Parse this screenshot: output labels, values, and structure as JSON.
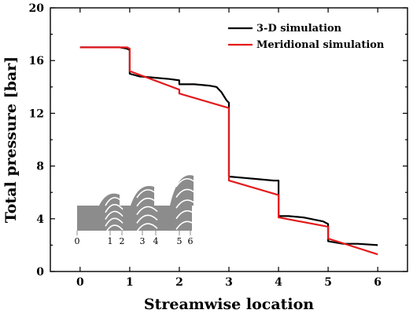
{
  "chart_data": {
    "type": "line",
    "xlabel": "Streamwise location",
    "ylabel": "Total pressure [bar]",
    "xlim": [
      -0.6,
      6.6
    ],
    "ylim": [
      0,
      20
    ],
    "xticks": [
      0,
      1,
      2,
      3,
      4,
      5,
      6
    ],
    "yticks": [
      0,
      4,
      8,
      12,
      16,
      20
    ],
    "grid": false,
    "legend": "top-right",
    "colors": {
      "series_3d": "#000000",
      "series_meridional": "#e41a1c",
      "inset_blade": "#8c8c8c"
    },
    "series": [
      {
        "name": "3-D simulation",
        "x": [
          0,
          0.4,
          0.8,
          0.95,
          1.0,
          1.0,
          1.2,
          1.5,
          1.8,
          2.0,
          2.0,
          2.3,
          2.6,
          2.75,
          2.85,
          2.95,
          3.0,
          3.0,
          3.3,
          3.6,
          3.9,
          4.0,
          4.0,
          4.2,
          4.5,
          4.9,
          5.0,
          5.0,
          5.3,
          5.6,
          6.0
        ],
        "y": [
          17.0,
          17.0,
          17.0,
          16.9,
          16.8,
          15.0,
          14.8,
          14.7,
          14.6,
          14.5,
          14.2,
          14.2,
          14.1,
          14.0,
          13.6,
          13.0,
          12.8,
          7.2,
          7.1,
          7.0,
          6.9,
          6.9,
          4.2,
          4.2,
          4.1,
          3.8,
          3.6,
          2.3,
          2.1,
          2.1,
          2.0
        ]
      },
      {
        "name": "Meridional simulation",
        "x": [
          0,
          0.5,
          0.95,
          1.0,
          1.0,
          2.0,
          2.0,
          3.0,
          3.0,
          4.0,
          4.0,
          5.0,
          5.0,
          6.0
        ],
        "y": [
          17.0,
          17.0,
          17.0,
          16.9,
          15.2,
          13.8,
          13.5,
          12.4,
          6.9,
          5.8,
          4.1,
          3.4,
          2.5,
          1.3
        ]
      }
    ],
    "inset": {
      "stations": [
        "0",
        "1",
        "2",
        "3",
        "4",
        "5",
        "6"
      ]
    }
  }
}
